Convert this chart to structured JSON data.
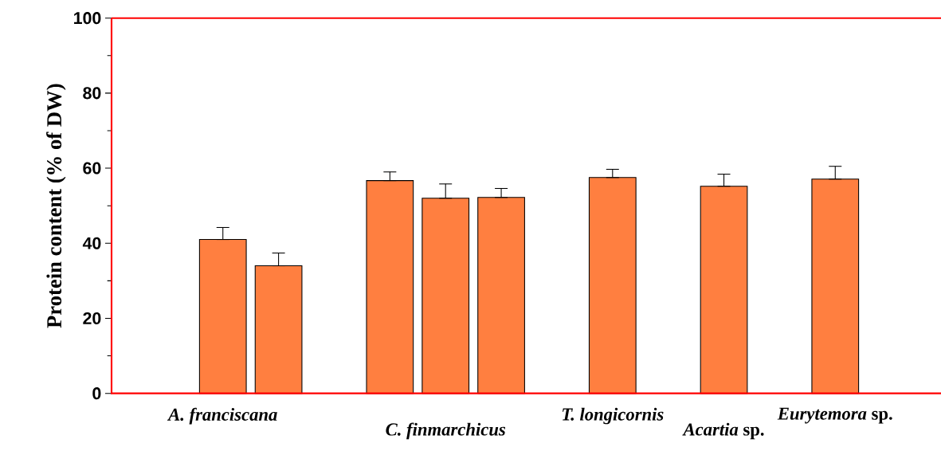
{
  "chart_data": {
    "type": "bar",
    "ylabel": "Protein content (% of DW)",
    "categories": [
      "*A. franciscana*",
      null,
      null,
      null,
      "*C. finmarchicus*",
      null,
      null,
      "*T. longicornis*",
      null,
      "*Acartia* sp.",
      null,
      "*Eurytemora* sp."
    ],
    "values": [
      41.0,
      34.0,
      null,
      56.7,
      52.0,
      52.2,
      null,
      57.5,
      null,
      55.2,
      null,
      57.1
    ],
    "errors": [
      [
        41.0,
        44.2
      ],
      [
        34.0,
        37.4
      ],
      null,
      [
        56.7,
        59.0
      ],
      [
        52.0,
        55.8
      ],
      [
        52.2,
        54.6
      ],
      null,
      [
        57.5,
        59.7
      ],
      null,
      [
        55.2,
        58.4
      ],
      null,
      [
        57.1,
        60.5
      ]
    ],
    "color": "#ff7f40",
    "ylim": [
      0,
      100
    ],
    "yticks": [
      0,
      20,
      40,
      60,
      80,
      100
    ]
  }
}
